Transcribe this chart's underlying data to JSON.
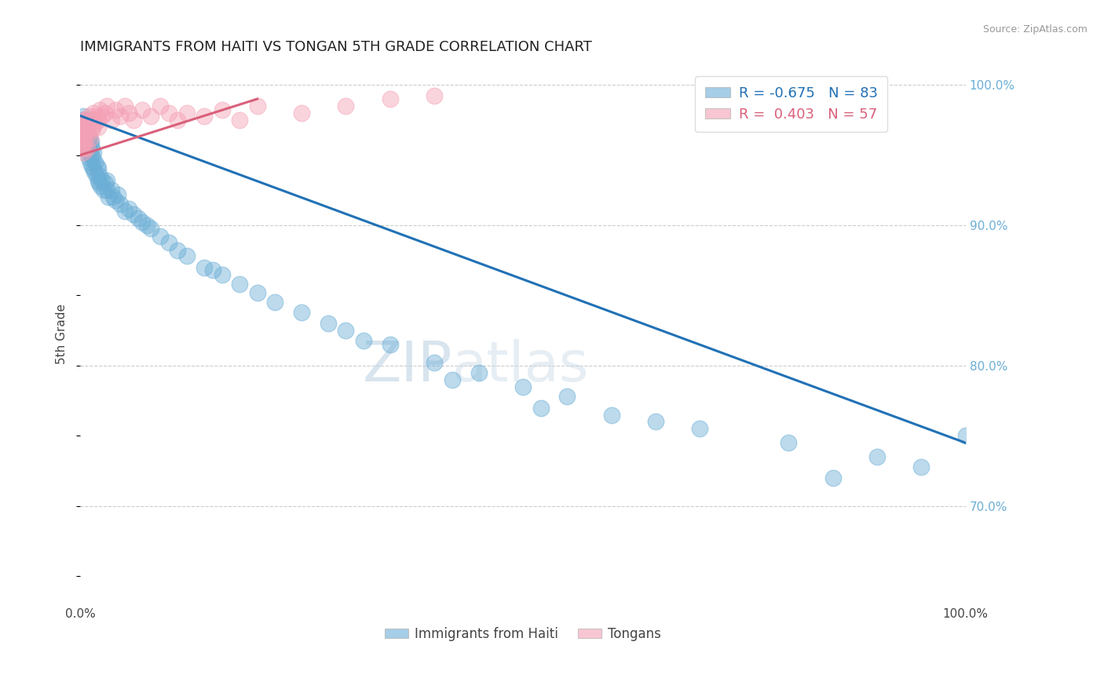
{
  "title": "IMMIGRANTS FROM HAITI VS TONGAN 5TH GRADE CORRELATION CHART",
  "source_text": "Source: ZipAtlas.com",
  "ylabel": "5th Grade",
  "xlim": [
    0.0,
    100.0
  ],
  "ylim": [
    63.0,
    101.5
  ],
  "yticks": [
    70.0,
    80.0,
    90.0,
    100.0
  ],
  "ytick_labels": [
    "70.0%",
    "80.0%",
    "90.0%",
    "100.0%"
  ],
  "haiti_color": "#6baed6",
  "tongan_color": "#f4a0b5",
  "haiti_line_color": "#2171b5",
  "tongan_line_color": "#d9607a",
  "legend_haiti_label": "R = -0.675   N = 83",
  "legend_tongan_label": "R =  0.403   N = 57",
  "watermark_zip": "ZIP",
  "watermark_atlas": "atlas",
  "haiti_scatter_x": [
    0.2,
    0.3,
    0.3,
    0.4,
    0.4,
    0.5,
    0.5,
    0.6,
    0.6,
    0.7,
    0.7,
    0.8,
    0.8,
    0.9,
    0.9,
    1.0,
    1.0,
    1.0,
    1.1,
    1.1,
    1.2,
    1.2,
    1.3,
    1.3,
    1.4,
    1.5,
    1.5,
    1.6,
    1.7,
    1.8,
    1.9,
    2.0,
    2.0,
    2.1,
    2.2,
    2.3,
    2.5,
    2.6,
    2.8,
    3.0,
    3.0,
    3.2,
    3.5,
    3.7,
    4.0,
    4.2,
    4.5,
    5.0,
    5.5,
    6.0,
    6.5,
    7.0,
    7.5,
    8.0,
    9.0,
    10.0,
    11.0,
    12.0,
    14.0,
    16.0,
    18.0,
    20.0,
    25.0,
    30.0,
    35.0,
    40.0,
    45.0,
    50.0,
    55.0,
    65.0,
    70.0,
    80.0,
    90.0,
    95.0,
    100.0,
    15.0,
    22.0,
    28.0,
    32.0,
    42.0,
    52.0,
    60.0,
    85.0
  ],
  "haiti_scatter_y": [
    97.5,
    97.8,
    96.5,
    97.2,
    95.8,
    96.8,
    97.0,
    96.0,
    95.5,
    96.2,
    97.5,
    95.8,
    96.5,
    95.2,
    96.0,
    94.8,
    95.5,
    96.2,
    94.5,
    95.8,
    95.0,
    96.0,
    94.2,
    95.5,
    94.8,
    94.0,
    95.2,
    93.8,
    94.5,
    93.5,
    94.2,
    93.2,
    94.0,
    93.0,
    93.5,
    92.8,
    93.2,
    92.5,
    93.0,
    92.5,
    93.2,
    92.0,
    92.5,
    92.0,
    91.8,
    92.2,
    91.5,
    91.0,
    91.2,
    90.8,
    90.5,
    90.2,
    90.0,
    89.8,
    89.2,
    88.8,
    88.2,
    87.8,
    87.0,
    86.5,
    85.8,
    85.2,
    83.8,
    82.5,
    81.5,
    80.2,
    79.5,
    78.5,
    77.8,
    76.0,
    75.5,
    74.5,
    73.5,
    72.8,
    75.0,
    86.8,
    84.5,
    83.0,
    81.8,
    79.0,
    77.0,
    76.5,
    72.0
  ],
  "tongan_scatter_x": [
    0.1,
    0.15,
    0.2,
    0.25,
    0.3,
    0.35,
    0.4,
    0.45,
    0.5,
    0.55,
    0.6,
    0.7,
    0.75,
    0.8,
    0.9,
    1.0,
    1.1,
    1.2,
    1.3,
    1.4,
    1.5,
    1.6,
    1.8,
    2.0,
    2.2,
    2.5,
    2.8,
    3.0,
    3.5,
    4.0,
    4.5,
    5.0,
    5.5,
    6.0,
    7.0,
    8.0,
    9.0,
    10.0,
    11.0,
    12.0,
    14.0,
    16.0,
    18.0,
    20.0,
    25.0,
    30.0,
    35.0,
    40.0,
    2.0,
    1.5,
    0.8,
    0.5,
    0.3,
    0.2,
    0.4,
    0.6,
    0.9
  ],
  "tongan_scatter_y": [
    96.0,
    95.5,
    96.2,
    95.8,
    96.5,
    95.2,
    97.0,
    95.5,
    97.2,
    96.0,
    97.5,
    96.8,
    95.5,
    97.2,
    96.5,
    97.8,
    96.2,
    97.5,
    96.8,
    97.0,
    98.0,
    97.2,
    97.8,
    97.5,
    98.2,
    97.8,
    98.0,
    98.5,
    97.5,
    98.2,
    97.8,
    98.5,
    98.0,
    97.5,
    98.2,
    97.8,
    98.5,
    98.0,
    97.5,
    98.0,
    97.8,
    98.2,
    97.5,
    98.5,
    98.0,
    98.5,
    99.0,
    99.2,
    97.0,
    97.5,
    96.8,
    96.5,
    97.2,
    96.2,
    97.5,
    96.8,
    97.0
  ],
  "haiti_trend_x": [
    0.0,
    100.0
  ],
  "haiti_trend_y": [
    97.8,
    74.5
  ],
  "tongan_trend_x": [
    0.0,
    20.0
  ],
  "tongan_trend_y": [
    95.0,
    99.0
  ]
}
